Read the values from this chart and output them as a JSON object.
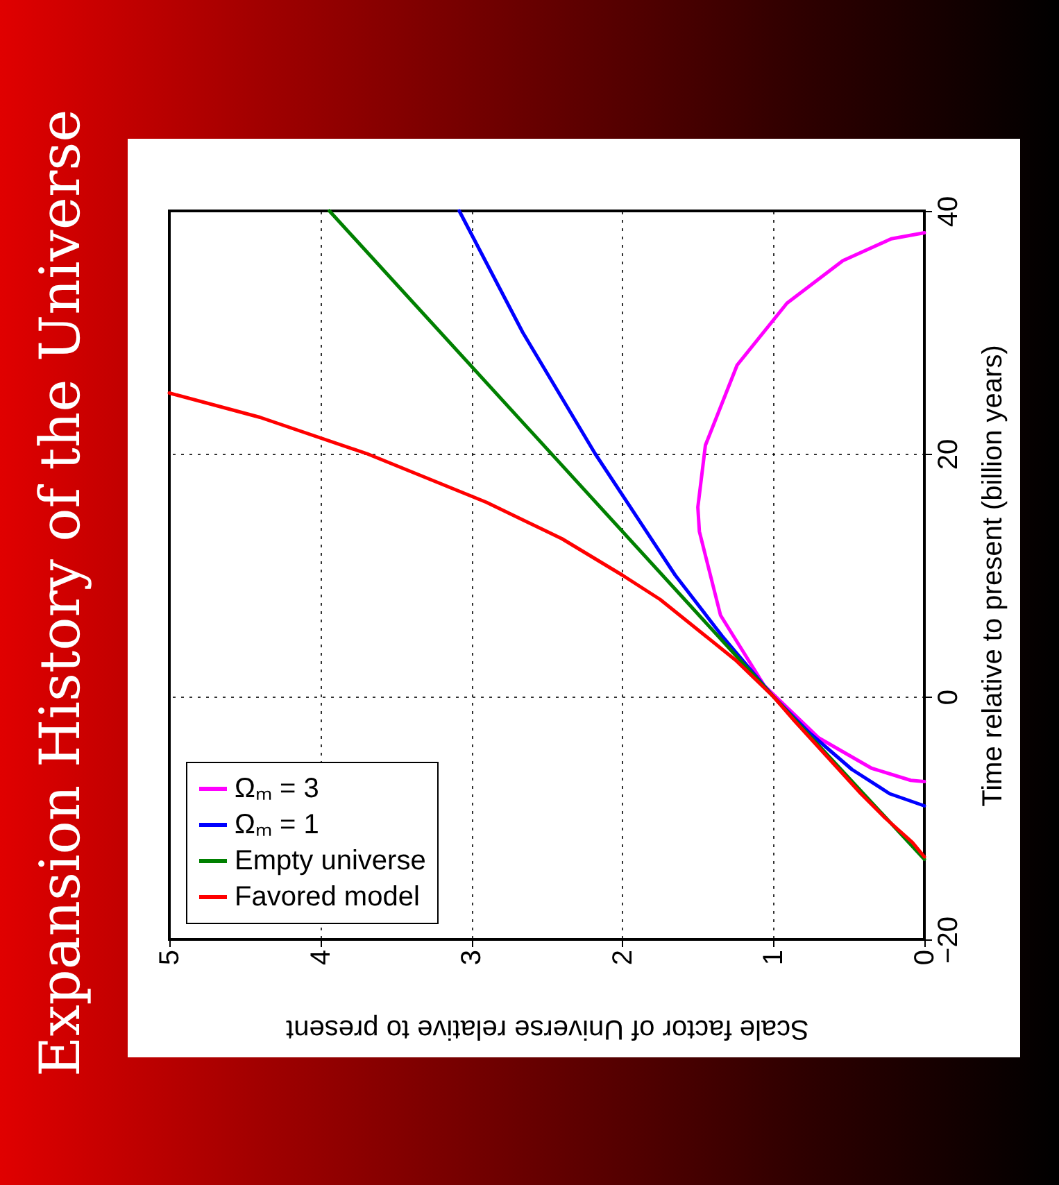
{
  "chart_data": {
    "type": "line",
    "title": "Expansion History of the Universe",
    "xlabel": "Scale factor of Universe relative to present",
    "ylabel": "Time relative to present (billion years)",
    "xlim": [
      5,
      0
    ],
    "ylim": [
      -20,
      40
    ],
    "xticks": [
      5,
      4,
      3,
      2,
      1,
      0
    ],
    "yticks": [
      -20,
      0,
      20,
      40
    ],
    "grid": true,
    "legend": "bottom left",
    "line_style": "solid",
    "marker": "none",
    "series": [
      {
        "name": "Ωₘ = 3",
        "color": "#ff00ff",
        "x": [
          0,
          0.09,
          0.35,
          0.7,
          1.06,
          1.35,
          1.49,
          1.5,
          1.45,
          1.24,
          0.91,
          0.54,
          0.22,
          0
        ],
        "values": [
          -7,
          -6.9,
          -5.9,
          -3.4,
          0.9,
          6.7,
          13.6,
          15.6,
          20.7,
          27.3,
          32.4,
          35.9,
          37.7,
          38.2
        ]
      },
      {
        "name": "Ωₘ = 1",
        "color": "#0000ff",
        "x": [
          0,
          0.23,
          0.48,
          0.76,
          1,
          1.34,
          1.65,
          2.18,
          2.66,
          3.08
        ],
        "values": [
          -9,
          -8,
          -6,
          -3,
          0,
          5,
          10,
          20,
          30,
          40
        ]
      },
      {
        "name": "Empty universe",
        "color": "#008000",
        "x": [
          0,
          1,
          3.94
        ],
        "values": [
          -13.4,
          0,
          40
        ]
      },
      {
        "name": "Favored model",
        "color": "#ff0000",
        "x": [
          0,
          0.08,
          0.26,
          0.42,
          0.64,
          0.86,
          1,
          1.25,
          1.45,
          1.75,
          2,
          2.4,
          2.9,
          3.69,
          4.4,
          5
        ],
        "values": [
          -13.2,
          -12,
          -10,
          -8,
          -5,
          -2,
          0,
          3,
          5,
          8,
          10,
          13,
          16,
          20,
          23,
          25
        ]
      }
    ]
  }
}
